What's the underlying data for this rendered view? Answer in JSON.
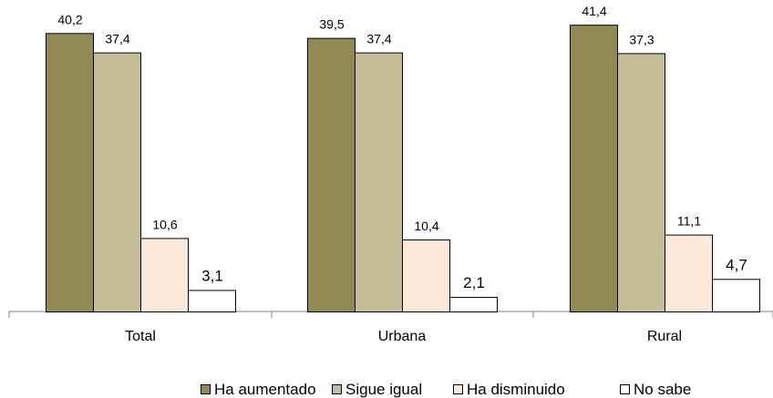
{
  "chart_data": {
    "type": "bar",
    "categories": [
      "Total",
      "Urbana",
      "Rural"
    ],
    "series": [
      {
        "name": "Ha aumentado",
        "values": [
          40.2,
          39.5,
          41.4
        ],
        "labels": [
          "40,2",
          "39,5",
          "41,4"
        ],
        "color": "#938953"
      },
      {
        "name": "Sigue igual",
        "values": [
          37.4,
          37.4,
          37.3
        ],
        "labels": [
          "37,4",
          "37,4",
          "37,3"
        ],
        "color": "#c4bd97"
      },
      {
        "name": "Ha disminuido",
        "values": [
          10.6,
          10.4,
          11.1
        ],
        "labels": [
          "10,6",
          "10,4",
          "11,1"
        ],
        "color": "#fde9d9"
      },
      {
        "name": "No sabe",
        "values": [
          3.1,
          2.1,
          4.7
        ],
        "labels": [
          "3,1",
          "2,1",
          "4,7"
        ],
        "color": "#ffffff"
      }
    ],
    "ylim": [
      0,
      45
    ],
    "grid": false,
    "legend_position": "bottom"
  }
}
